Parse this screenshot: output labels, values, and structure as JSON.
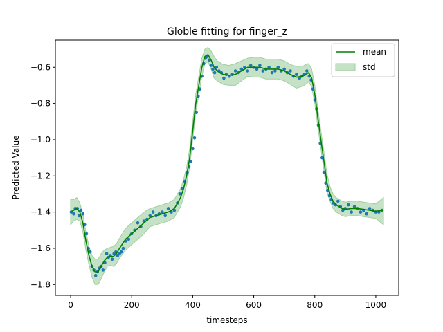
{
  "chart_data": {
    "type": "line",
    "title": "Globle fitting for finger_z",
    "xlabel": "timesteps",
    "ylabel": "Predicted Value",
    "xlim": [
      -50,
      1075
    ],
    "ylim": [
      -1.86,
      -0.45
    ],
    "xticks": [
      0,
      200,
      400,
      600,
      800,
      1000
    ],
    "xtick_labels": [
      "0",
      "200",
      "400",
      "600",
      "800",
      "1000"
    ],
    "yticks": [
      -1.8,
      -1.6,
      -1.4,
      -1.2,
      -1.0,
      -0.8,
      -0.6
    ],
    "ytick_labels": [
      "−1.8",
      "−1.6",
      "−1.4",
      "−1.2",
      "−1.0",
      "−0.8",
      "−0.6"
    ],
    "grid": false,
    "legend_position": "top-right",
    "colors": {
      "mean": "#008000",
      "std_fill": "#c6e2c6",
      "std_edge": "#9fcf9f",
      "points": "#1f77b4"
    },
    "legend": [
      {
        "label": "mean",
        "kind": "line"
      },
      {
        "label": "std",
        "kind": "patch"
      }
    ],
    "series": [
      {
        "name": "mean",
        "x": [
          0,
          10,
          20,
          30,
          40,
          50,
          60,
          70,
          80,
          90,
          100,
          110,
          120,
          130,
          140,
          150,
          160,
          180,
          200,
          220,
          240,
          260,
          280,
          300,
          320,
          340,
          360,
          370,
          380,
          390,
          400,
          410,
          420,
          430,
          440,
          450,
          460,
          470,
          480,
          500,
          520,
          540,
          560,
          580,
          600,
          620,
          640,
          660,
          680,
          700,
          720,
          740,
          760,
          770,
          780,
          790,
          800,
          810,
          820,
          830,
          840,
          850,
          860,
          870,
          880,
          890,
          900,
          920,
          940,
          960,
          980,
          1000,
          1025
        ],
        "y": [
          -1.4,
          -1.39,
          -1.38,
          -1.4,
          -1.46,
          -1.56,
          -1.64,
          -1.7,
          -1.73,
          -1.73,
          -1.7,
          -1.67,
          -1.65,
          -1.645,
          -1.645,
          -1.63,
          -1.6,
          -1.55,
          -1.52,
          -1.49,
          -1.46,
          -1.43,
          -1.42,
          -1.41,
          -1.4,
          -1.38,
          -1.32,
          -1.27,
          -1.2,
          -1.1,
          -0.95,
          -0.8,
          -0.7,
          -0.6,
          -0.54,
          -0.53,
          -0.56,
          -0.6,
          -0.62,
          -0.64,
          -0.645,
          -0.64,
          -0.62,
          -0.6,
          -0.6,
          -0.6,
          -0.61,
          -0.61,
          -0.61,
          -0.62,
          -0.64,
          -0.655,
          -0.65,
          -0.64,
          -0.63,
          -0.66,
          -0.75,
          -0.88,
          -1.0,
          -1.12,
          -1.24,
          -1.3,
          -1.34,
          -1.36,
          -1.37,
          -1.38,
          -1.385,
          -1.38,
          -1.38,
          -1.385,
          -1.39,
          -1.395,
          -1.39
        ]
      },
      {
        "name": "std",
        "x": [
          0,
          10,
          20,
          30,
          40,
          50,
          60,
          70,
          80,
          90,
          100,
          110,
          120,
          130,
          140,
          150,
          160,
          180,
          200,
          220,
          240,
          260,
          280,
          300,
          320,
          340,
          360,
          370,
          380,
          390,
          400,
          410,
          420,
          430,
          440,
          450,
          460,
          470,
          480,
          500,
          520,
          540,
          560,
          580,
          600,
          620,
          640,
          660,
          680,
          700,
          720,
          740,
          760,
          770,
          780,
          790,
          800,
          810,
          820,
          830,
          840,
          850,
          860,
          870,
          880,
          890,
          900,
          920,
          940,
          960,
          980,
          1000,
          1025
        ],
        "upper": [
          -1.33,
          -1.33,
          -1.32,
          -1.35,
          -1.41,
          -1.51,
          -1.59,
          -1.64,
          -1.66,
          -1.66,
          -1.63,
          -1.61,
          -1.6,
          -1.595,
          -1.59,
          -1.575,
          -1.545,
          -1.49,
          -1.46,
          -1.43,
          -1.4,
          -1.38,
          -1.37,
          -1.36,
          -1.35,
          -1.33,
          -1.27,
          -1.22,
          -1.15,
          -1.05,
          -0.9,
          -0.75,
          -0.65,
          -0.55,
          -0.5,
          -0.49,
          -0.51,
          -0.54,
          -0.565,
          -0.585,
          -0.59,
          -0.58,
          -0.565,
          -0.55,
          -0.545,
          -0.545,
          -0.555,
          -0.555,
          -0.555,
          -0.565,
          -0.585,
          -0.595,
          -0.595,
          -0.585,
          -0.58,
          -0.61,
          -0.7,
          -0.83,
          -0.95,
          -1.07,
          -1.19,
          -1.26,
          -1.3,
          -1.32,
          -1.33,
          -1.34,
          -1.345,
          -1.34,
          -1.34,
          -1.345,
          -1.35,
          -1.355,
          -1.32
        ],
        "lower": [
          -1.47,
          -1.45,
          -1.44,
          -1.45,
          -1.51,
          -1.61,
          -1.69,
          -1.76,
          -1.8,
          -1.8,
          -1.77,
          -1.73,
          -1.7,
          -1.695,
          -1.7,
          -1.685,
          -1.655,
          -1.61,
          -1.58,
          -1.55,
          -1.52,
          -1.48,
          -1.47,
          -1.46,
          -1.45,
          -1.43,
          -1.37,
          -1.32,
          -1.25,
          -1.15,
          -1.0,
          -0.85,
          -0.75,
          -0.65,
          -0.58,
          -0.57,
          -0.61,
          -0.66,
          -0.675,
          -0.695,
          -0.7,
          -0.7,
          -0.675,
          -0.65,
          -0.655,
          -0.655,
          -0.665,
          -0.665,
          -0.665,
          -0.675,
          -0.695,
          -0.715,
          -0.705,
          -0.695,
          -0.68,
          -0.71,
          -0.8,
          -0.93,
          -1.05,
          -1.17,
          -1.29,
          -1.34,
          -1.38,
          -1.4,
          -1.41,
          -1.42,
          -1.425,
          -1.42,
          -1.42,
          -1.425,
          -1.43,
          -1.435,
          -1.47
        ]
      },
      {
        "name": "",
        "kind": "scatter",
        "x": [
          2,
          10,
          15,
          22,
          28,
          34,
          40,
          46,
          52,
          58,
          64,
          70,
          76,
          82,
          88,
          94,
          100,
          106,
          112,
          118,
          124,
          130,
          136,
          142,
          148,
          154,
          160,
          166,
          172,
          180,
          190,
          200,
          210,
          220,
          230,
          240,
          250,
          260,
          270,
          280,
          290,
          300,
          310,
          320,
          330,
          340,
          350,
          358,
          366,
          374,
          382,
          388,
          394,
          400,
          406,
          412,
          418,
          424,
          430,
          436,
          442,
          448,
          454,
          460,
          466,
          472,
          478,
          486,
          494,
          502,
          510,
          520,
          530,
          540,
          550,
          560,
          570,
          580,
          590,
          600,
          610,
          620,
          630,
          640,
          650,
          660,
          670,
          680,
          690,
          700,
          710,
          720,
          730,
          740,
          750,
          758,
          766,
          774,
          782,
          788,
          794,
          800,
          806,
          812,
          818,
          824,
          830,
          836,
          842,
          848,
          854,
          860,
          868,
          876,
          884,
          892,
          900,
          910,
          920,
          930,
          940,
          950,
          960,
          970,
          980,
          990,
          1000,
          1010,
          1020
        ],
        "y": [
          -1.4,
          -1.41,
          -1.38,
          -1.38,
          -1.42,
          -1.39,
          -1.41,
          -1.47,
          -1.52,
          -1.6,
          -1.62,
          -1.7,
          -1.72,
          -1.75,
          -1.73,
          -1.71,
          -1.7,
          -1.72,
          -1.68,
          -1.63,
          -1.65,
          -1.64,
          -1.66,
          -1.63,
          -1.62,
          -1.64,
          -1.63,
          -1.62,
          -1.6,
          -1.56,
          -1.55,
          -1.52,
          -1.5,
          -1.46,
          -1.48,
          -1.45,
          -1.44,
          -1.42,
          -1.4,
          -1.42,
          -1.41,
          -1.4,
          -1.42,
          -1.38,
          -1.4,
          -1.39,
          -1.35,
          -1.3,
          -1.27,
          -1.23,
          -1.18,
          -1.15,
          -1.12,
          -1.05,
          -0.99,
          -0.85,
          -0.76,
          -0.72,
          -0.65,
          -0.58,
          -0.55,
          -0.54,
          -0.56,
          -0.59,
          -0.61,
          -0.63,
          -0.6,
          -0.62,
          -0.63,
          -0.66,
          -0.64,
          -0.65,
          -0.64,
          -0.62,
          -0.63,
          -0.61,
          -0.6,
          -0.62,
          -0.59,
          -0.6,
          -0.61,
          -0.59,
          -0.62,
          -0.61,
          -0.6,
          -0.63,
          -0.62,
          -0.6,
          -0.62,
          -0.61,
          -0.63,
          -0.62,
          -0.65,
          -0.64,
          -0.66,
          -0.65,
          -0.64,
          -0.62,
          -0.65,
          -0.67,
          -0.72,
          -0.78,
          -0.83,
          -0.92,
          -1.02,
          -1.1,
          -1.18,
          -1.24,
          -1.28,
          -1.31,
          -1.33,
          -1.35,
          -1.36,
          -1.34,
          -1.37,
          -1.39,
          -1.38,
          -1.36,
          -1.4,
          -1.37,
          -1.38,
          -1.4,
          -1.39,
          -1.41,
          -1.38,
          -1.39,
          -1.4,
          -1.4,
          -1.39
        ]
      }
    ]
  }
}
